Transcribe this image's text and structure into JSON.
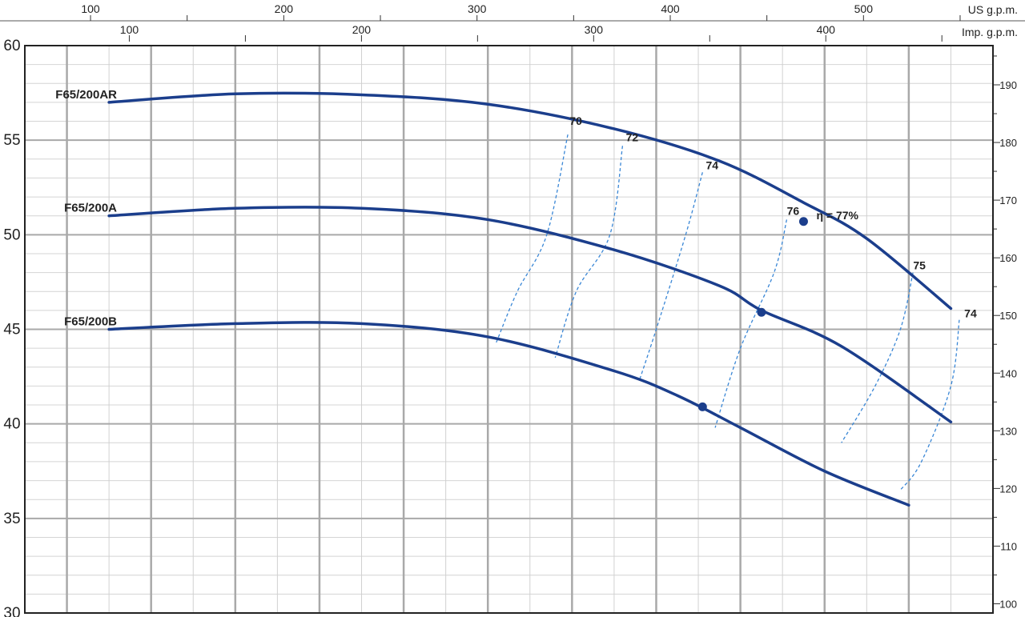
{
  "chart_data": {
    "type": "line",
    "axes": {
      "left": {
        "ticks": [
          "30",
          "35",
          "40",
          "45",
          "50",
          "55",
          "60"
        ],
        "range": [
          30,
          60
        ]
      },
      "right": {
        "ticks": [
          "100",
          "110",
          "120",
          "130",
          "140",
          "150",
          "160",
          "170",
          "180",
          "190"
        ],
        "range": [
          98.4,
          196.8
        ]
      },
      "top_us": {
        "unit": "US g.p.m.",
        "ticks": [
          "100",
          "200",
          "300",
          "400",
          "500"
        ],
        "range": [
          66,
          567
        ]
      },
      "top_imp": {
        "unit": "Imp. g.p.m.",
        "ticks": [
          "100",
          "200",
          "300",
          "400"
        ],
        "range": [
          55,
          472
        ]
      }
    },
    "x_primary_range": [
      15,
      130
    ],
    "series": [
      {
        "name": "F65/200AR",
        "x": [
          25,
          40,
          55,
          70,
          85,
          97.5,
          107.5,
          115,
          125
        ],
        "y": [
          57,
          57.45,
          57.4,
          56.9,
          55.6,
          53.9,
          51.7,
          49.8,
          46.1
        ]
      },
      {
        "name": "F65/200A",
        "x": [
          25,
          40,
          55,
          70,
          85,
          97.5,
          102.5,
          112,
          125
        ],
        "y": [
          51,
          51.4,
          51.4,
          50.8,
          49.2,
          47.3,
          46,
          44.1,
          40.1
        ]
      },
      {
        "name": "F65/200B",
        "x": [
          25,
          40,
          55,
          70,
          85,
          92.5,
          100,
          110,
          120
        ],
        "y": [
          45,
          45.3,
          45.3,
          44.6,
          42.8,
          41.5,
          39.8,
          37.5,
          35.7
        ]
      }
    ],
    "efficiency_labels": [
      "70",
      "72",
      "74",
      "76",
      "η = 77%",
      "75",
      "74"
    ],
    "efficiency_curves": [
      {
        "label": "70",
        "points": [
          [
            79.5,
            55.3
          ],
          [
            77,
            50
          ],
          [
            73.5,
            47
          ],
          [
            71,
            44.3
          ]
        ]
      },
      {
        "label": "72",
        "points": [
          [
            86,
            54.7
          ],
          [
            84.5,
            50
          ],
          [
            80.5,
            47
          ],
          [
            78,
            43.5
          ]
        ]
      },
      {
        "label": "74",
        "points": [
          [
            95.5,
            53.3
          ],
          [
            93.5,
            50
          ],
          [
            90,
            45
          ],
          [
            88,
            42.3
          ]
        ]
      },
      {
        "label": "76",
        "points": [
          [
            105.5,
            50.8
          ],
          [
            104,
            48
          ],
          [
            100,
            44
          ],
          [
            97,
            39.8
          ]
        ]
      },
      {
        "label": "75",
        "points": [
          [
            120.5,
            48
          ],
          [
            119,
            45
          ],
          [
            116,
            42
          ],
          [
            112,
            39
          ]
        ]
      },
      {
        "label": "74",
        "points": [
          [
            126,
            45.5
          ],
          [
            125,
            42
          ],
          [
            121.5,
            38
          ],
          [
            119,
            36.5
          ]
        ]
      }
    ],
    "bep_points": [
      [
        107.5,
        50.7
      ],
      [
        102.5,
        45.9
      ],
      [
        95.5,
        40.9
      ]
    ],
    "grid": true
  }
}
